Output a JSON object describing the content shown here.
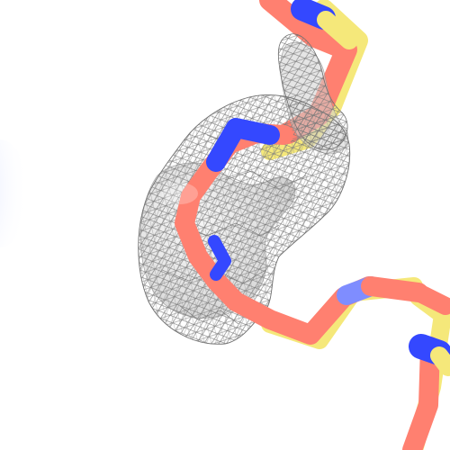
{
  "scene": {
    "kind": "molecular-structure-view",
    "background": "#ffffff",
    "colors": {
      "carbon_salmon": "#ff8070",
      "carbon_yellow": "#f5e87a",
      "nitrogen_blue": "#3448ff",
      "nitrogen_light": "#7f8dff",
      "density_mesh": "#6f6f6f",
      "density_surface": "#b8b8b8",
      "fog_blue": "#e4eaff"
    },
    "layers": [
      "stick-model",
      "electron-density-mesh",
      "density-surface"
    ]
  }
}
